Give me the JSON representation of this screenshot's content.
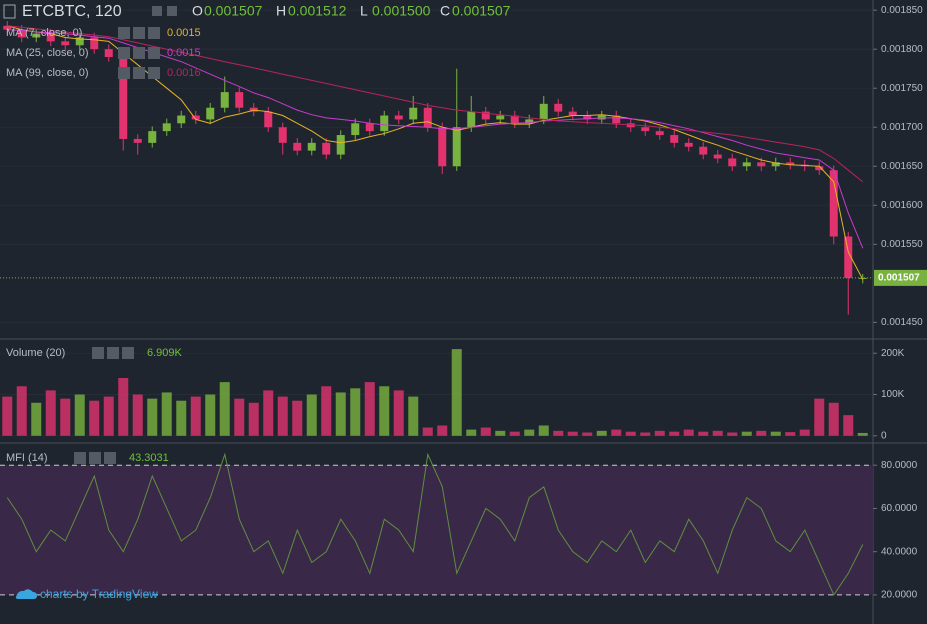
{
  "chart_data": {
    "type": "candlestick",
    "title": "ETCBTC, 120",
    "ohlc_labels": [
      "O",
      "H",
      "L",
      "C"
    ],
    "ohlc_values": [
      "0.001507",
      "0.001512",
      "0.001500",
      "0.001507"
    ],
    "up_color": "#79b33f",
    "down_color": "#e2336f",
    "ylim": [
      0.00143,
      0.001863
    ],
    "yticks": [
      {
        "value": 0.00185,
        "label": "0.001850"
      },
      {
        "value": 0.0018,
        "label": "0.001800"
      },
      {
        "value": 0.00175,
        "label": "0.001750"
      },
      {
        "value": 0.0017,
        "label": "0.001700"
      },
      {
        "value": 0.00165,
        "label": "0.001650"
      },
      {
        "value": 0.0016,
        "label": "0.001600"
      },
      {
        "value": 0.00155,
        "label": "0.001550"
      },
      {
        "value": 0.00145,
        "label": "0.001450"
      }
    ],
    "candles": {
      "open": [
        0.00183,
        0.001825,
        0.001815,
        0.00182,
        0.00181,
        0.001805,
        0.001815,
        0.0018,
        0.00179,
        0.001685,
        0.00168,
        0.001695,
        0.001705,
        0.001715,
        0.00171,
        0.001725,
        0.001745,
        0.001725,
        0.00172,
        0.0017,
        0.00168,
        0.00167,
        0.00168,
        0.001665,
        0.00169,
        0.001705,
        0.001695,
        0.001715,
        0.00171,
        0.001725,
        0.0017,
        0.00165,
        0.0017,
        0.00172,
        0.00171,
        0.001715,
        0.001705,
        0.00171,
        0.00173,
        0.00172,
        0.001715,
        0.00171,
        0.001715,
        0.001705,
        0.0017,
        0.001695,
        0.00169,
        0.00168,
        0.001675,
        0.001665,
        0.00166,
        0.00165,
        0.001655,
        0.00165,
        0.001655,
        0.001652,
        0.00165,
        0.001645,
        0.00156,
        0.001507
      ],
      "high": [
        0.001836,
        0.001831,
        0.001826,
        0.001826,
        0.001816,
        0.001821,
        0.001821,
        0.001806,
        0.001796,
        0.001691,
        0.001701,
        0.001711,
        0.001721,
        0.001721,
        0.001731,
        0.001765,
        0.001751,
        0.001731,
        0.001726,
        0.001706,
        0.001686,
        0.001686,
        0.001686,
        0.001696,
        0.001711,
        0.001711,
        0.001721,
        0.001721,
        0.00174,
        0.001731,
        0.001706,
        0.001775,
        0.00174,
        0.001726,
        0.001721,
        0.001721,
        0.001716,
        0.00174,
        0.001736,
        0.001726,
        0.001721,
        0.001721,
        0.001721,
        0.001711,
        0.001706,
        0.001701,
        0.001696,
        0.001686,
        0.001681,
        0.001671,
        0.001666,
        0.001661,
        0.001661,
        0.001661,
        0.001661,
        0.001658,
        0.001656,
        0.001651,
        0.001566,
        0.001512
      ],
      "low": [
        0.001819,
        0.001809,
        0.001809,
        0.001804,
        0.001799,
        0.001799,
        0.001794,
        0.001784,
        0.00167,
        0.001665,
        0.001674,
        0.001689,
        0.001699,
        0.001704,
        0.001704,
        0.001719,
        0.001719,
        0.001714,
        0.001694,
        0.001665,
        0.001664,
        0.001664,
        0.001659,
        0.001659,
        0.001684,
        0.001689,
        0.001689,
        0.001704,
        0.001704,
        0.001694,
        0.00164,
        0.001644,
        0.001694,
        0.001704,
        0.001704,
        0.001699,
        0.001699,
        0.001704,
        0.001714,
        0.001709,
        0.001704,
        0.001704,
        0.001699,
        0.001694,
        0.001689,
        0.001684,
        0.001674,
        0.001669,
        0.001659,
        0.001654,
        0.001644,
        0.001644,
        0.001644,
        0.001644,
        0.001646,
        0.001644,
        0.001639,
        0.00155,
        0.00146,
        0.0015
      ],
      "close": [
        0.001825,
        0.001815,
        0.00182,
        0.00181,
        0.001805,
        0.001815,
        0.0018,
        0.00179,
        0.001685,
        0.00168,
        0.001695,
        0.001705,
        0.001715,
        0.00171,
        0.001725,
        0.001745,
        0.001725,
        0.00172,
        0.0017,
        0.00168,
        0.00167,
        0.00168,
        0.001665,
        0.00169,
        0.001705,
        0.001695,
        0.001715,
        0.00171,
        0.001725,
        0.0017,
        0.00165,
        0.0017,
        0.00172,
        0.00171,
        0.001715,
        0.001705,
        0.00171,
        0.00173,
        0.00172,
        0.001715,
        0.00171,
        0.001715,
        0.001705,
        0.0017,
        0.001695,
        0.00169,
        0.00168,
        0.001675,
        0.001665,
        0.00166,
        0.00165,
        0.001655,
        0.00165,
        0.001655,
        0.001652,
        0.00165,
        0.001645,
        0.00156,
        0.001507,
        0.001507
      ]
    },
    "moving_averages": [
      {
        "name": "MA (7, close, 0)",
        "value_label": "0.0015",
        "color": "#e6b422",
        "values": [
          0.00183,
          0.001825,
          0.001822,
          0.00182,
          0.001815,
          0.001813,
          0.001812,
          0.00181,
          0.001795,
          0.00178,
          0.001765,
          0.00175,
          0.001735,
          0.00171,
          0.001705,
          0.001713,
          0.001717,
          0.001722,
          0.00172,
          0.001715,
          0.001705,
          0.001695,
          0.001683,
          0.00168,
          0.001683,
          0.001688,
          0.001692,
          0.001698,
          0.001705,
          0.001707,
          0.0017,
          0.001696,
          0.0017,
          0.001704,
          0.001706,
          0.001704,
          0.001704,
          0.001709,
          0.001712,
          0.001715,
          0.001715,
          0.001716,
          0.001714,
          0.001711,
          0.001708,
          0.001703,
          0.001697,
          0.00169,
          0.001683,
          0.001677,
          0.00167,
          0.001664,
          0.001658,
          0.001654,
          0.001652,
          0.001651,
          0.00165,
          0.00163,
          0.00154,
          0.001505
        ]
      },
      {
        "name": "MA (25, close, 0)",
        "value_label": "0.0015",
        "color": "#c93bd0",
        "values": [
          0.001825,
          0.001824,
          0.001822,
          0.001821,
          0.00182,
          0.001818,
          0.001816,
          0.001814,
          0.001808,
          0.001802,
          0.001796,
          0.00179,
          0.001784,
          0.001776,
          0.001768,
          0.00176,
          0.001752,
          0.001744,
          0.001738,
          0.00173,
          0.001722,
          0.001716,
          0.001712,
          0.00171,
          0.001708,
          0.001705,
          0.001703,
          0.001702,
          0.001701,
          0.0017,
          0.001698,
          0.001698,
          0.0017,
          0.001702,
          0.001704,
          0.001705,
          0.001706,
          0.001708,
          0.001709,
          0.00171,
          0.001711,
          0.001712,
          0.001712,
          0.001711,
          0.001709,
          0.001706,
          0.001702,
          0.001698,
          0.001693,
          0.001688,
          0.001683,
          0.001677,
          0.001672,
          0.001667,
          0.001664,
          0.001661,
          0.001658,
          0.001645,
          0.00159,
          0.001545
        ]
      },
      {
        "name": "MA (99, close, 0)",
        "value_label": "0.0016",
        "color": "#b8245a",
        "values": [
          0.00183,
          0.001828,
          0.001826,
          0.001824,
          0.001822,
          0.00182,
          0.001818,
          0.001816,
          0.001812,
          0.001808,
          0.001804,
          0.0018,
          0.001796,
          0.001792,
          0.001788,
          0.001784,
          0.00178,
          0.001776,
          0.001772,
          0.001768,
          0.001764,
          0.00176,
          0.001756,
          0.001752,
          0.001748,
          0.001744,
          0.00174,
          0.001736,
          0.001732,
          0.001728,
          0.001725,
          0.001722,
          0.00172,
          0.001718,
          0.001716,
          0.001714,
          0.001712,
          0.00171,
          0.001708,
          0.001707,
          0.001706,
          0.001705,
          0.001704,
          0.001703,
          0.001702,
          0.0017,
          0.001698,
          0.001696,
          0.001694,
          0.001692,
          0.00169,
          0.001687,
          0.001684,
          0.001681,
          0.001678,
          0.001675,
          0.001671,
          0.00166,
          0.001645,
          0.00163
        ]
      }
    ],
    "volume": {
      "title": "Volume (20)",
      "value_label": "6.909K",
      "ylim": [
        -15000,
        232000
      ],
      "yticks": [
        0,
        {
          "value": 100000,
          "label": "100K"
        },
        {
          "value": 200000,
          "label": "200K"
        }
      ],
      "values": [
        95000,
        120000,
        80000,
        110000,
        90000,
        100000,
        85000,
        95000,
        140000,
        100000,
        90000,
        105000,
        85000,
        95000,
        100000,
        130000,
        90000,
        80000,
        110000,
        95000,
        85000,
        100000,
        120000,
        105000,
        115000,
        130000,
        120000,
        110000,
        95000,
        20000,
        25000,
        210000,
        15000,
        20000,
        12000,
        10000,
        15000,
        25000,
        12000,
        10000,
        8000,
        12000,
        15000,
        10000,
        8000,
        12000,
        10000,
        15000,
        10000,
        12000,
        8000,
        10000,
        12000,
        10000,
        9000,
        15000,
        90000,
        80000,
        50000,
        6909
      ]
    },
    "mfi": {
      "title": "MFI (14)",
      "value_label": "43.3031",
      "color": "#5f8f3e",
      "band_color": "#3a2848",
      "ylim": [
        8.4,
        89.8
      ],
      "yticks": [
        {
          "value": 20,
          "label": "20.0000"
        },
        {
          "value": 40,
          "label": "40.0000"
        },
        {
          "value": 60,
          "label": "60.0000"
        },
        {
          "value": 80,
          "label": "80.0000"
        }
      ],
      "band": [
        20,
        80
      ],
      "values": [
        65,
        55,
        40,
        50,
        45,
        60,
        75,
        50,
        40,
        55,
        75,
        60,
        45,
        50,
        65,
        85,
        55,
        40,
        45,
        30,
        50,
        35,
        40,
        55,
        45,
        30,
        55,
        50,
        40,
        85,
        70,
        30,
        45,
        60,
        55,
        45,
        65,
        70,
        50,
        40,
        35,
        45,
        40,
        50,
        35,
        45,
        40,
        55,
        45,
        30,
        50,
        65,
        60,
        45,
        40,
        50,
        35,
        20,
        30,
        43.3031
      ]
    },
    "attribution": "charts by TradingView"
  }
}
